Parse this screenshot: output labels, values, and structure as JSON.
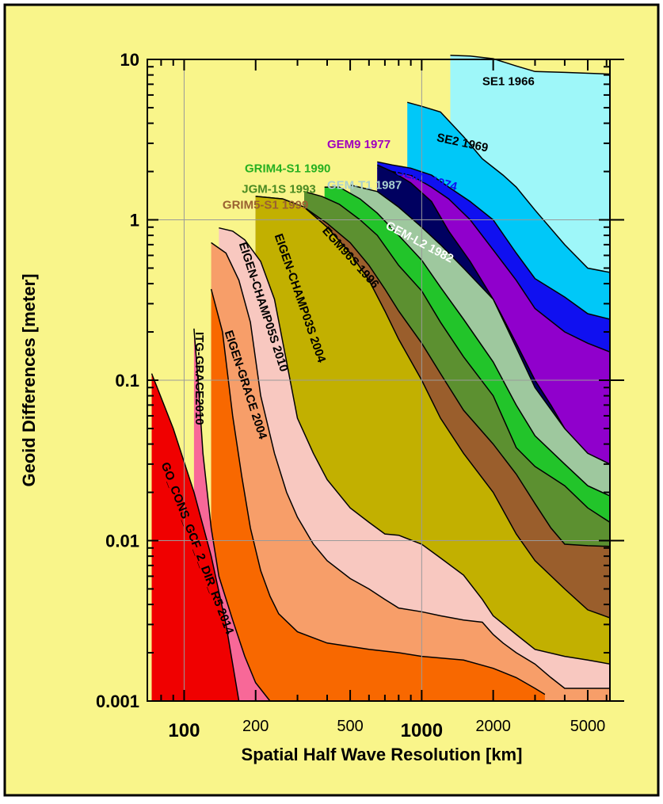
{
  "chart_data": {
    "type": "area",
    "xlabel": "Spatial Half Wave Resolution [km]",
    "ylabel": "Geoid Differences [meter]",
    "x_scale": "log",
    "y_scale": "log",
    "xlim": [
      70,
      6200
    ],
    "ylim": [
      0.001,
      10
    ],
    "x_ticks": [
      {
        "value": 100,
        "label": "100",
        "bold": true
      },
      {
        "value": 200,
        "label": "200",
        "bold": false
      },
      {
        "value": 500,
        "label": "500",
        "bold": false
      },
      {
        "value": 1000,
        "label": "1000",
        "bold": true
      },
      {
        "value": 2000,
        "label": "2000",
        "bold": false
      },
      {
        "value": 5000,
        "label": "5000",
        "bold": false
      }
    ],
    "y_ticks": [
      {
        "value": 10,
        "label": "10"
      },
      {
        "value": 1,
        "label": "1"
      },
      {
        "value": 0.1,
        "label": "0.1"
      },
      {
        "value": 0.01,
        "label": "0.01"
      },
      {
        "value": 0.001,
        "label": "0.001"
      }
    ],
    "grid": true,
    "background_color": "#f9f58a",
    "series": [
      {
        "name": "SE1 1966",
        "color": "#9ef7f9",
        "label": {
          "x": 1800,
          "y": 6.9,
          "rot": 0,
          "color": "#000000"
        },
        "points": [
          [
            1320,
            10.6
          ],
          [
            1600,
            10.5
          ],
          [
            2000,
            10.1
          ],
          [
            2500,
            9.1
          ],
          [
            3000,
            8.4
          ],
          [
            4000,
            8.3
          ],
          [
            6200,
            8.1
          ],
          [
            6200,
            0.001
          ]
        ]
      },
      {
        "name": "SE2 1969",
        "color": "#00c8f8",
        "label": {
          "x": 1150,
          "y": 3.1,
          "rot": 12,
          "color": "#000000"
        },
        "points": [
          [
            870,
            5.4
          ],
          [
            1000,
            5.1
          ],
          [
            1200,
            4.7
          ],
          [
            1500,
            3.3
          ],
          [
            1800,
            2.4
          ],
          [
            2200,
            1.9
          ],
          [
            2500,
            1.6
          ],
          [
            3000,
            1.15
          ],
          [
            4000,
            0.7
          ],
          [
            5000,
            0.5
          ],
          [
            6200,
            0.47
          ],
          [
            6200,
            0.001
          ]
        ]
      },
      {
        "name": "GEM5 1974",
        "color": "#1010f0",
        "label": {
          "x": 770,
          "y": 1.92,
          "rot": 15,
          "color": "#1010f0"
        },
        "points": [
          [
            650,
            2.3
          ],
          [
            750,
            2.2
          ],
          [
            900,
            2.1
          ],
          [
            1100,
            1.9
          ],
          [
            1300,
            1.6
          ],
          [
            1600,
            1.3
          ],
          [
            2000,
            1.0
          ],
          [
            2500,
            0.62
          ],
          [
            3000,
            0.43
          ],
          [
            4000,
            0.33
          ],
          [
            5000,
            0.26
          ],
          [
            6200,
            0.24
          ],
          [
            6200,
            0.001
          ]
        ]
      },
      {
        "name": "GEM9  1977",
        "color": "#9000cc",
        "label": {
          "x": 400,
          "y": 2.8,
          "rot": 0,
          "color": "#a000c0"
        },
        "points": [
          [
            650,
            2.1
          ],
          [
            750,
            2.0
          ],
          [
            900,
            1.9
          ],
          [
            1100,
            1.6
          ],
          [
            1300,
            1.35
          ],
          [
            1600,
            1.0
          ],
          [
            2000,
            0.65
          ],
          [
            2500,
            0.42
          ],
          [
            3000,
            0.28
          ],
          [
            4000,
            0.2
          ],
          [
            5000,
            0.17
          ],
          [
            6200,
            0.15
          ],
          [
            6200,
            0.001
          ]
        ]
      },
      {
        "name": "GEM-L2  1982",
        "color": "#000060",
        "label": {
          "x": 700,
          "y": 0.89,
          "rot": 28,
          "color": "#ffffff"
        },
        "points": [
          [
            650,
            2.2
          ],
          [
            750,
            2.0
          ],
          [
            900,
            1.7
          ],
          [
            1100,
            1.3
          ],
          [
            1300,
            0.85
          ],
          [
            1600,
            0.55
          ],
          [
            2000,
            0.32
          ],
          [
            2500,
            0.17
          ],
          [
            3000,
            0.1
          ],
          [
            3500,
            0.07
          ],
          [
            4000,
            0.05
          ],
          [
            5000,
            0.032
          ],
          [
            6200,
            0.022
          ],
          [
            6200,
            0.001
          ]
        ]
      },
      {
        "name": "GEM-T1  1987",
        "color": "#9ec89e",
        "label": {
          "x": 400,
          "y": 1.56,
          "rot": 0,
          "color": "#a9cfcf"
        },
        "points": [
          [
            500,
            1.65
          ],
          [
            650,
            1.5
          ],
          [
            800,
            1.2
          ],
          [
            1000,
            0.9
          ],
          [
            1200,
            0.7
          ],
          [
            1500,
            0.5
          ],
          [
            2000,
            0.32
          ],
          [
            2500,
            0.16
          ],
          [
            3000,
            0.09
          ],
          [
            4000,
            0.05
          ],
          [
            5000,
            0.035
          ],
          [
            6200,
            0.03
          ],
          [
            6200,
            0.001
          ]
        ]
      },
      {
        "name": "GRIM4-S1  1990",
        "color": "#22c42a",
        "label": {
          "x": 180,
          "y": 1.98,
          "rot": 0,
          "color": "#26b020"
        },
        "points": [
          [
            390,
            1.6
          ],
          [
            450,
            1.6
          ],
          [
            550,
            1.35
          ],
          [
            650,
            1.1
          ],
          [
            800,
            0.8
          ],
          [
            1000,
            0.56
          ],
          [
            1200,
            0.38
          ],
          [
            1500,
            0.24
          ],
          [
            2000,
            0.13
          ],
          [
            2500,
            0.07
          ],
          [
            3000,
            0.045
          ],
          [
            4000,
            0.03
          ],
          [
            5000,
            0.022
          ],
          [
            6200,
            0.019
          ],
          [
            6200,
            0.001
          ]
        ]
      },
      {
        "name": "JGM-1S  1993",
        "color": "#5c9030",
        "label": {
          "x": 175,
          "y": 1.47,
          "rot": 0,
          "color": "#4a8a22"
        },
        "points": [
          [
            320,
            1.5
          ],
          [
            380,
            1.4
          ],
          [
            450,
            1.25
          ],
          [
            550,
            1.0
          ],
          [
            650,
            0.8
          ],
          [
            800,
            0.52
          ],
          [
            1000,
            0.36
          ],
          [
            1200,
            0.23
          ],
          [
            1500,
            0.14
          ],
          [
            2000,
            0.08
          ],
          [
            2500,
            0.038
          ],
          [
            3000,
            0.029
          ],
          [
            3500,
            0.025
          ],
          [
            4000,
            0.022
          ],
          [
            5000,
            0.016
          ],
          [
            6200,
            0.013
          ],
          [
            6200,
            0.001
          ]
        ]
      },
      {
        "name": "GRIM5-S1  1999",
        "color": "#9a5e2c",
        "label": {
          "x": 145,
          "y": 1.17,
          "rot": 0,
          "color": "#9a6030"
        },
        "points": [
          [
            200,
            1.4
          ],
          [
            260,
            1.35
          ],
          [
            320,
            1.2
          ],
          [
            400,
            0.95
          ],
          [
            500,
            0.72
          ],
          [
            600,
            0.52
          ],
          [
            700,
            0.37
          ],
          [
            800,
            0.27
          ],
          [
            1000,
            0.17
          ],
          [
            1200,
            0.11
          ],
          [
            1500,
            0.065
          ],
          [
            2000,
            0.04
          ],
          [
            2500,
            0.026
          ],
          [
            3000,
            0.017
          ],
          [
            3500,
            0.012
          ],
          [
            4000,
            0.0095
          ],
          [
            5000,
            0.0093
          ],
          [
            6200,
            0.0092
          ],
          [
            6200,
            0.001
          ]
        ]
      },
      {
        "name": "EGM96S  1996",
        "color": "#c2b000",
        "label": {
          "x": 380,
          "y": 0.85,
          "rot": 48,
          "color": "#000000"
        },
        "points": [
          [
            200,
            1.4
          ],
          [
            260,
            1.35
          ],
          [
            320,
            1.2
          ],
          [
            400,
            0.9
          ],
          [
            500,
            0.62
          ],
          [
            600,
            0.42
          ],
          [
            700,
            0.27
          ],
          [
            800,
            0.18
          ],
          [
            1000,
            0.1
          ],
          [
            1200,
            0.058
          ],
          [
            1500,
            0.035
          ],
          [
            2000,
            0.02
          ],
          [
            2500,
            0.011
          ],
          [
            3000,
            0.0075
          ],
          [
            4000,
            0.005
          ],
          [
            5000,
            0.0037
          ],
          [
            6200,
            0.0033
          ],
          [
            6200,
            0.001
          ]
        ]
      },
      {
        "name": "EIGEN-CHAMP03S  2004",
        "color": "#f8c8c0",
        "label": {
          "x": 240,
          "y": 0.8,
          "rot": 71,
          "color": "#000000"
        },
        "points": [
          [
            140,
            0.89
          ],
          [
            160,
            0.85
          ],
          [
            180,
            0.75
          ],
          [
            210,
            0.55
          ],
          [
            240,
            0.32
          ],
          [
            270,
            0.13
          ],
          [
            300,
            0.058
          ],
          [
            350,
            0.035
          ],
          [
            400,
            0.024
          ],
          [
            500,
            0.016
          ],
          [
            600,
            0.013
          ],
          [
            700,
            0.011
          ],
          [
            800,
            0.0108
          ],
          [
            1000,
            0.0095
          ],
          [
            1200,
            0.0078
          ],
          [
            1500,
            0.0061
          ],
          [
            1800,
            0.0043
          ],
          [
            2000,
            0.0034
          ],
          [
            2500,
            0.0026
          ],
          [
            3000,
            0.0021
          ],
          [
            4000,
            0.0019
          ],
          [
            5000,
            0.0018
          ],
          [
            6200,
            0.0017
          ],
          [
            6200,
            0.001
          ]
        ]
      },
      {
        "name": "EIGEN-CHAMP05S  2010",
        "color": "#f79e69",
        "label": {
          "x": 170,
          "y": 0.71,
          "rot": 72,
          "color": "#000000"
        },
        "points": [
          [
            130,
            0.72
          ],
          [
            150,
            0.62
          ],
          [
            170,
            0.42
          ],
          [
            190,
            0.23
          ],
          [
            210,
            0.08
          ],
          [
            240,
            0.035
          ],
          [
            270,
            0.02
          ],
          [
            300,
            0.014
          ],
          [
            350,
            0.0095
          ],
          [
            400,
            0.0075
          ],
          [
            500,
            0.0058
          ],
          [
            600,
            0.005
          ],
          [
            700,
            0.0043
          ],
          [
            800,
            0.0038
          ],
          [
            1000,
            0.0036
          ],
          [
            1200,
            0.0034
          ],
          [
            1500,
            0.0032
          ],
          [
            1800,
            0.0031
          ],
          [
            2000,
            0.0026
          ],
          [
            2200,
            0.0023
          ],
          [
            2500,
            0.002
          ],
          [
            3000,
            0.0017
          ],
          [
            3500,
            0.0014
          ],
          [
            4000,
            0.0012
          ],
          [
            6200,
            0.0012
          ],
          [
            6200,
            0.001
          ]
        ]
      },
      {
        "name": "EIGEN-GRACE  2004",
        "color": "#f86800",
        "label": {
          "x": 148,
          "y": 0.2,
          "rot": 72,
          "color": "#000000"
        },
        "points": [
          [
            130,
            0.37
          ],
          [
            145,
            0.2
          ],
          [
            160,
            0.06
          ],
          [
            175,
            0.025
          ],
          [
            190,
            0.012
          ],
          [
            210,
            0.0065
          ],
          [
            230,
            0.0045
          ],
          [
            250,
            0.0035
          ],
          [
            300,
            0.0027
          ],
          [
            400,
            0.0023
          ],
          [
            600,
            0.0021
          ],
          [
            800,
            0.002
          ],
          [
            1000,
            0.0019
          ],
          [
            1500,
            0.0018
          ],
          [
            2000,
            0.0016
          ],
          [
            2500,
            0.0014
          ],
          [
            3000,
            0.0012
          ],
          [
            3300,
            0.0011
          ],
          [
            3300,
            0.001
          ]
        ]
      },
      {
        "name": "ITG-GRACE2010",
        "color": "#f86898",
        "label": {
          "x": 112,
          "y": 0.2,
          "rot": 90,
          "color": "#000000"
        },
        "points": [
          [
            110,
            0.21
          ],
          [
            115,
            0.09
          ],
          [
            120,
            0.035
          ],
          [
            130,
            0.012
          ],
          [
            140,
            0.006
          ],
          [
            160,
            0.0032
          ],
          [
            180,
            0.0019
          ],
          [
            200,
            0.0013
          ],
          [
            230,
            0.001
          ]
        ]
      },
      {
        "name": "GO_CONS_GCF_2_DIR_R5  2014",
        "color": "#f00000",
        "label": {
          "x": 80,
          "y": 0.03,
          "rot": 69,
          "color": "#000000"
        },
        "points": [
          [
            73,
            0.11
          ],
          [
            90,
            0.05
          ],
          [
            110,
            0.02
          ],
          [
            130,
            0.008
          ],
          [
            150,
            0.003
          ],
          [
            165,
            0.0013
          ],
          [
            170,
            0.001
          ]
        ]
      }
    ]
  }
}
